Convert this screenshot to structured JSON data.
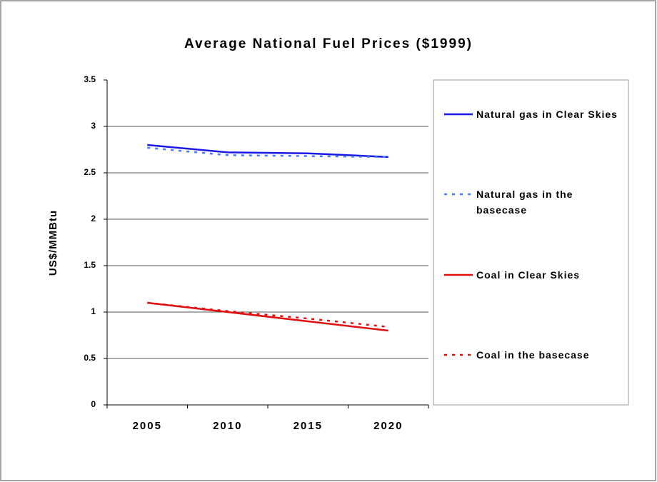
{
  "chart_data": {
    "type": "line",
    "title": "Average National Fuel Prices ($1999)",
    "y_label": "US$/MMBtu",
    "categories": [
      "2005",
      "2010",
      "2015",
      "2020"
    ],
    "series": [
      {
        "name": "Natural gas in Clear Skies",
        "color": "#1a1ae6",
        "dash": false,
        "values": [
          2.8,
          2.72,
          2.71,
          2.67
        ]
      },
      {
        "name": "Natural gas in the basecase",
        "color": "#4a7bff",
        "dash": true,
        "values": [
          2.77,
          2.69,
          2.68,
          2.67
        ]
      },
      {
        "name": "Coal in Clear Skies",
        "color": "#e01010",
        "dash": false,
        "values": [
          1.1,
          1.0,
          0.9,
          0.8
        ]
      },
      {
        "name": "Coal in the basecase",
        "color": "#e01010",
        "dash": true,
        "values": [
          1.1,
          1.01,
          0.93,
          0.84
        ]
      }
    ],
    "ylim": [
      0,
      3.5
    ],
    "yticks": [
      0,
      {
        "value": 0.5,
        "label": "0.5"
      },
      1,
      {
        "value": 1.5,
        "label": "1.5"
      },
      2,
      {
        "value": 2.5,
        "label": "2.5"
      },
      3,
      {
        "value": 3.5,
        "label": "3.5"
      }
    ],
    "grid": true
  }
}
